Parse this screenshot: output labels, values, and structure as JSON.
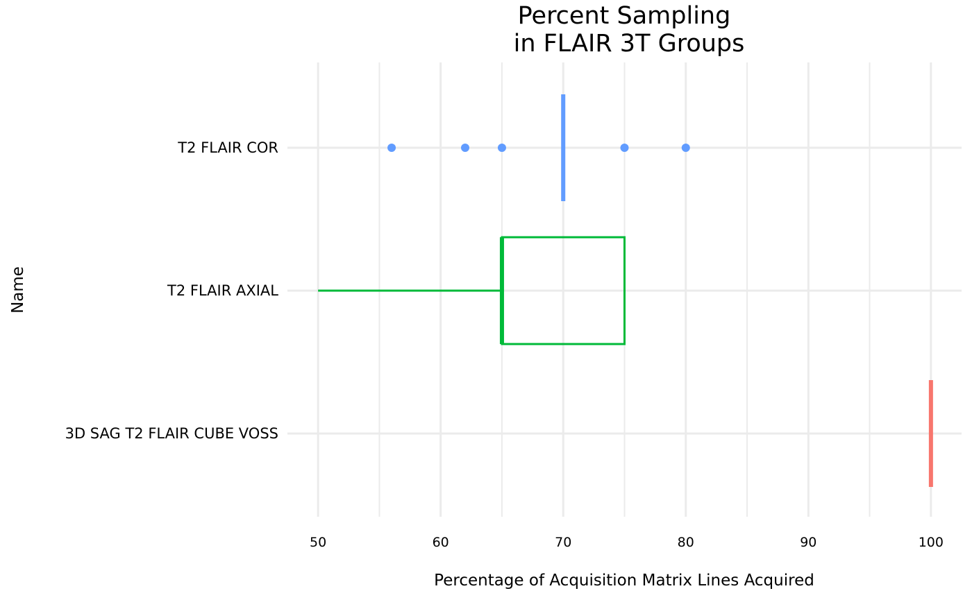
{
  "chart_data": {
    "type": "box",
    "title_lines": [
      "Percent Sampling",
      "in FLAIR 3T Groups"
    ],
    "xlabel": "Percentage of Acquisition Matrix Lines Acquired",
    "ylabel": "Name",
    "xlim": [
      47.5,
      102.5
    ],
    "x_ticks": [
      50,
      60,
      70,
      80,
      90,
      100
    ],
    "x_tick_labels": [
      "50",
      "60",
      "70",
      "80",
      "90",
      "100"
    ],
    "x_minor_ticks": [
      55,
      65,
      75,
      85,
      95
    ],
    "grid": true,
    "legend": "none",
    "categories": [
      "3D SAG T2 FLAIR CUBE VOSS",
      "T2 FLAIR AXIAL",
      "T2 FLAIR COR"
    ],
    "series": [
      {
        "category": "3D SAG T2 FLAIR CUBE VOSS",
        "color": "#F8766D",
        "min": 100,
        "q1": 100,
        "median": 100,
        "q3": 100,
        "max": 100,
        "outliers": []
      },
      {
        "category": "T2 FLAIR AXIAL",
        "color": "#00BA38",
        "min": 50,
        "q1": 65,
        "median": 65,
        "q3": 75,
        "max": 75,
        "outliers": []
      },
      {
        "category": "T2 FLAIR COR",
        "color": "#619CFF",
        "min": 70,
        "q1": 70,
        "median": 70,
        "q3": 70,
        "max": 70,
        "outliers": [
          56,
          62,
          65,
          75,
          80
        ]
      }
    ]
  }
}
